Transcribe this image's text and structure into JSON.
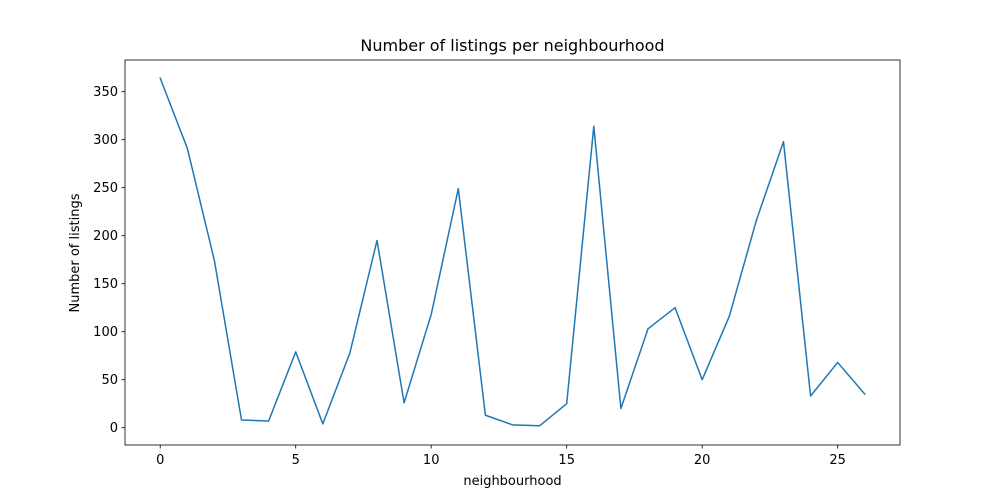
{
  "chart_data": {
    "type": "line",
    "title": "Number of listings per neighbourhood",
    "xlabel": "neighbourhood",
    "ylabel": "Number of listings",
    "xlim": [
      -1.3,
      27.3
    ],
    "ylim": [
      -18,
      383
    ],
    "xticks": [
      0,
      5,
      10,
      15,
      20,
      25
    ],
    "yticks": [
      0,
      50,
      100,
      150,
      200,
      250,
      300,
      350
    ],
    "grid": false,
    "color": "#1f77b4",
    "series": [
      {
        "x": [
          0,
          1,
          2,
          3,
          4,
          5,
          6,
          7,
          8,
          9,
          10,
          11,
          12,
          13,
          14,
          15,
          16,
          17,
          18,
          19,
          20,
          21,
          22,
          23,
          24,
          25,
          26
        ],
        "values": [
          364,
          291,
          174,
          8,
          7,
          79,
          4,
          78,
          195,
          26,
          118,
          249,
          13,
          3,
          2,
          25,
          314,
          20,
          103,
          125,
          50,
          116,
          216,
          298,
          33,
          68,
          35
        ]
      }
    ]
  }
}
